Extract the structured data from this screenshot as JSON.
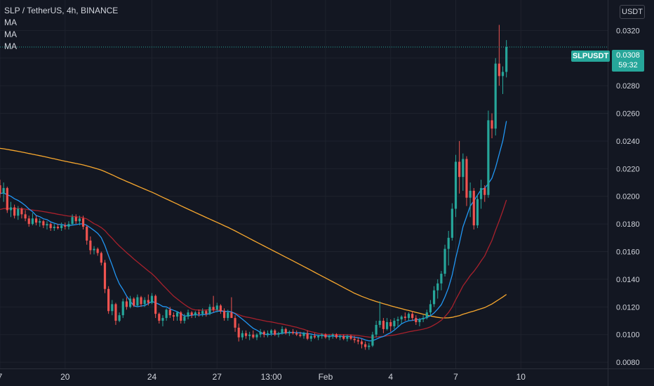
{
  "legend": {
    "title": "SLP / TetherUS, 4h, BINANCE",
    "ma_labels": [
      "MA",
      "MA",
      "MA"
    ]
  },
  "axis": {
    "unit": "USDT"
  },
  "last_price": {
    "symbol": "SLPUSDT",
    "value": "0.0308",
    "countdown": "59:32"
  },
  "colors": {
    "background": "#131722",
    "grid": "#1e222d",
    "up": "#26a69a",
    "down": "#ef5350",
    "ma_fast": "#2196f3",
    "ma_mid": "#a7212c",
    "ma_slow": "#f7a72e",
    "text": "#d1d4dc"
  },
  "chart_data": {
    "type": "candlestick",
    "y_ticks": [
      "0.0080",
      "0.0100",
      "0.0120",
      "0.0140",
      "0.0160",
      "0.0180",
      "0.0200",
      "0.0220",
      "0.0240",
      "0.0260",
      "0.0280",
      "0.0300",
      "0.0320"
    ],
    "ylim": [
      0.00755,
      0.0342
    ],
    "x_ticks": [
      {
        "label": "7",
        "i": 0
      },
      {
        "label": "20",
        "i": 18
      },
      {
        "label": "24",
        "i": 42
      },
      {
        "label": "27",
        "i": 60
      },
      {
        "label": "13:00",
        "i": 75
      },
      {
        "label": "Feb",
        "i": 90
      },
      {
        "label": "4",
        "i": 108
      },
      {
        "label": "7",
        "i": 126
      },
      {
        "label": "10",
        "i": 144
      }
    ],
    "x_index_range": [
      0,
      168
    ],
    "last_value": 0.0308,
    "candles_ohlc": [
      [
        0.0208,
        0.0212,
        0.0199,
        0.0202
      ],
      [
        0.0202,
        0.021,
        0.0196,
        0.0206
      ],
      [
        0.0206,
        0.0207,
        0.0188,
        0.019
      ],
      [
        0.019,
        0.0196,
        0.0185,
        0.0192
      ],
      [
        0.0192,
        0.0194,
        0.0184,
        0.0186
      ],
      [
        0.0186,
        0.0193,
        0.0183,
        0.0191
      ],
      [
        0.0191,
        0.0192,
        0.0184,
        0.0187
      ],
      [
        0.0187,
        0.019,
        0.0182,
        0.0184
      ],
      [
        0.0184,
        0.0186,
        0.0178,
        0.018
      ],
      [
        0.018,
        0.0188,
        0.0179,
        0.0184
      ],
      [
        0.0184,
        0.0186,
        0.0179,
        0.0181
      ],
      [
        0.0181,
        0.0184,
        0.0178,
        0.0182
      ],
      [
        0.0182,
        0.0183,
        0.0177,
        0.0179
      ],
      [
        0.0179,
        0.0182,
        0.0176,
        0.018
      ],
      [
        0.018,
        0.0181,
        0.0175,
        0.0177
      ],
      [
        0.0177,
        0.018,
        0.0175,
        0.0178
      ],
      [
        0.0178,
        0.018,
        0.0176,
        0.0177
      ],
      [
        0.0177,
        0.0181,
        0.0175,
        0.0179
      ],
      [
        0.0179,
        0.0181,
        0.0176,
        0.0178
      ],
      [
        0.0178,
        0.0182,
        0.0176,
        0.018
      ],
      [
        0.018,
        0.0187,
        0.0179,
        0.0185
      ],
      [
        0.0185,
        0.0187,
        0.018,
        0.0182
      ],
      [
        0.0182,
        0.0186,
        0.0179,
        0.0184
      ],
      [
        0.0184,
        0.0186,
        0.0176,
        0.0178
      ],
      [
        0.0178,
        0.0179,
        0.0165,
        0.0168
      ],
      [
        0.0168,
        0.0171,
        0.0158,
        0.0161
      ],
      [
        0.0161,
        0.0164,
        0.0158,
        0.0162
      ],
      [
        0.0162,
        0.0163,
        0.0157,
        0.0159
      ],
      [
        0.0159,
        0.016,
        0.015,
        0.0152
      ],
      [
        0.0152,
        0.0154,
        0.013,
        0.0133
      ],
      [
        0.0133,
        0.0135,
        0.0115,
        0.0117
      ],
      [
        0.0117,
        0.0125,
        0.0114,
        0.0122
      ],
      [
        0.0122,
        0.0123,
        0.0107,
        0.011
      ],
      [
        0.011,
        0.0116,
        0.0109,
        0.0114
      ],
      [
        0.0114,
        0.0126,
        0.0112,
        0.0124
      ],
      [
        0.0124,
        0.0127,
        0.0118,
        0.012
      ],
      [
        0.012,
        0.0128,
        0.0119,
        0.0126
      ],
      [
        0.0126,
        0.0127,
        0.012,
        0.0121
      ],
      [
        0.0121,
        0.0129,
        0.012,
        0.0127
      ],
      [
        0.0127,
        0.0128,
        0.012,
        0.0122
      ],
      [
        0.0122,
        0.0127,
        0.012,
        0.0125
      ],
      [
        0.0125,
        0.0129,
        0.0121,
        0.0123
      ],
      [
        0.0123,
        0.013,
        0.0122,
        0.0128
      ],
      [
        0.0128,
        0.0129,
        0.0112,
        0.0115
      ],
      [
        0.0115,
        0.0116,
        0.0108,
        0.011
      ],
      [
        0.011,
        0.0114,
        0.0106,
        0.0112
      ],
      [
        0.0112,
        0.0119,
        0.011,
        0.0118
      ],
      [
        0.0118,
        0.012,
        0.0112,
        0.0114
      ],
      [
        0.0114,
        0.0116,
        0.011,
        0.0113
      ],
      [
        0.0113,
        0.0117,
        0.011,
        0.0116
      ],
      [
        0.0116,
        0.0117,
        0.0108,
        0.011
      ],
      [
        0.011,
        0.0115,
        0.0108,
        0.0113
      ],
      [
        0.0113,
        0.0118,
        0.0111,
        0.0116
      ],
      [
        0.0116,
        0.0117,
        0.0112,
        0.0114
      ],
      [
        0.0114,
        0.0117,
        0.0112,
        0.0116
      ],
      [
        0.0116,
        0.0118,
        0.0113,
        0.0115
      ],
      [
        0.0115,
        0.0119,
        0.0113,
        0.0117
      ],
      [
        0.0117,
        0.0118,
        0.0113,
        0.0115
      ],
      [
        0.0115,
        0.0122,
        0.0114,
        0.012
      ],
      [
        0.012,
        0.0128,
        0.0116,
        0.0118
      ],
      [
        0.0118,
        0.0123,
        0.0116,
        0.0121
      ],
      [
        0.0121,
        0.0122,
        0.0115,
        0.0117
      ],
      [
        0.0117,
        0.0119,
        0.011,
        0.0112
      ],
      [
        0.0112,
        0.0118,
        0.011,
        0.0116
      ],
      [
        0.0116,
        0.0127,
        0.0114,
        0.0112
      ],
      [
        0.0112,
        0.0114,
        0.0102,
        0.0105
      ],
      [
        0.0105,
        0.0108,
        0.0095,
        0.0098
      ],
      [
        0.0098,
        0.0103,
        0.0096,
        0.0101
      ],
      [
        0.0101,
        0.0103,
        0.0097,
        0.0099
      ],
      [
        0.0099,
        0.0102,
        0.0096,
        0.01
      ],
      [
        0.01,
        0.0103,
        0.0097,
        0.0098
      ],
      [
        0.0098,
        0.0101,
        0.0096,
        0.01
      ],
      [
        0.01,
        0.0104,
        0.0098,
        0.0102
      ],
      [
        0.0102,
        0.0103,
        0.0098,
        0.01
      ],
      [
        0.01,
        0.0103,
        0.0098,
        0.0101
      ],
      [
        0.0101,
        0.0104,
        0.0099,
        0.0103
      ],
      [
        0.0103,
        0.0104,
        0.0099,
        0.01
      ],
      [
        0.01,
        0.0102,
        0.0098,
        0.0101
      ],
      [
        0.0101,
        0.0106,
        0.01,
        0.0104
      ],
      [
        0.0104,
        0.0105,
        0.01,
        0.0101
      ],
      [
        0.0101,
        0.0103,
        0.0099,
        0.0102
      ],
      [
        0.0102,
        0.0104,
        0.01,
        0.0101
      ],
      [
        0.0101,
        0.0103,
        0.0099,
        0.01
      ],
      [
        0.01,
        0.0102,
        0.0098,
        0.0099
      ],
      [
        0.0099,
        0.0102,
        0.0097,
        0.0101
      ],
      [
        0.0101,
        0.0103,
        0.0096,
        0.0097
      ],
      [
        0.0097,
        0.01,
        0.0095,
        0.0099
      ],
      [
        0.0099,
        0.0101,
        0.0097,
        0.0098
      ],
      [
        0.0098,
        0.01,
        0.0096,
        0.0099
      ],
      [
        0.0099,
        0.0101,
        0.0097,
        0.01
      ],
      [
        0.01,
        0.0101,
        0.0097,
        0.0098
      ],
      [
        0.0098,
        0.01,
        0.0096,
        0.0099
      ],
      [
        0.0099,
        0.0101,
        0.0097,
        0.01
      ],
      [
        0.01,
        0.0101,
        0.0097,
        0.0098
      ],
      [
        0.0098,
        0.01,
        0.0096,
        0.0099
      ],
      [
        0.0099,
        0.01,
        0.0096,
        0.0097
      ],
      [
        0.0097,
        0.01,
        0.0095,
        0.0099
      ],
      [
        0.0099,
        0.01,
        0.0096,
        0.0097
      ],
      [
        0.0097,
        0.0099,
        0.0094,
        0.0096
      ],
      [
        0.0096,
        0.0098,
        0.0093,
        0.0095
      ],
      [
        0.0095,
        0.0097,
        0.009,
        0.0093
      ],
      [
        0.0093,
        0.0095,
        0.0089,
        0.0091
      ],
      [
        0.0091,
        0.0094,
        0.0089,
        0.0092
      ],
      [
        0.0092,
        0.0102,
        0.0091,
        0.01
      ],
      [
        0.01,
        0.011,
        0.0098,
        0.0107
      ],
      [
        0.0107,
        0.0124,
        0.0105,
        0.011
      ],
      [
        0.011,
        0.0112,
        0.0101,
        0.0104
      ],
      [
        0.0104,
        0.0112,
        0.0103,
        0.0109
      ],
      [
        0.0109,
        0.0111,
        0.0102,
        0.0106
      ],
      [
        0.0106,
        0.0112,
        0.0104,
        0.011
      ],
      [
        0.011,
        0.0113,
        0.0106,
        0.0111
      ],
      [
        0.0111,
        0.0114,
        0.0108,
        0.0113
      ],
      [
        0.0113,
        0.0116,
        0.011,
        0.0112
      ],
      [
        0.0112,
        0.0116,
        0.011,
        0.0115
      ],
      [
        0.0115,
        0.0117,
        0.011,
        0.0112
      ],
      [
        0.0112,
        0.0114,
        0.0107,
        0.0109
      ],
      [
        0.0109,
        0.0112,
        0.0106,
        0.0111
      ],
      [
        0.0111,
        0.0114,
        0.0109,
        0.0112
      ],
      [
        0.0112,
        0.0118,
        0.0111,
        0.0116
      ],
      [
        0.0116,
        0.0125,
        0.0114,
        0.0122
      ],
      [
        0.0122,
        0.0135,
        0.012,
        0.0132
      ],
      [
        0.0132,
        0.014,
        0.0126,
        0.0137
      ],
      [
        0.0137,
        0.0146,
        0.0132,
        0.0144
      ],
      [
        0.0144,
        0.0165,
        0.0142,
        0.0162
      ],
      [
        0.0162,
        0.0175,
        0.015,
        0.017
      ],
      [
        0.017,
        0.0195,
        0.0168,
        0.0191
      ],
      [
        0.0191,
        0.023,
        0.0185,
        0.0225
      ],
      [
        0.0225,
        0.024,
        0.0202,
        0.0214
      ],
      [
        0.0214,
        0.0231,
        0.0204,
        0.0227
      ],
      [
        0.0227,
        0.0229,
        0.0193,
        0.0199
      ],
      [
        0.0199,
        0.021,
        0.0185,
        0.0204
      ],
      [
        0.0204,
        0.0206,
        0.0176,
        0.0179
      ],
      [
        0.0179,
        0.0201,
        0.0177,
        0.0198
      ],
      [
        0.0198,
        0.0212,
        0.0191,
        0.0206
      ],
      [
        0.0206,
        0.0208,
        0.0196,
        0.0201
      ],
      [
        0.0201,
        0.0262,
        0.0199,
        0.0255
      ],
      [
        0.0255,
        0.026,
        0.0242,
        0.0249
      ],
      [
        0.0249,
        0.03,
        0.0244,
        0.0296
      ],
      [
        0.0296,
        0.0324,
        0.028,
        0.0287
      ],
      [
        0.0287,
        0.0294,
        0.0274,
        0.029
      ],
      [
        0.029,
        0.0313,
        0.0286,
        0.0308
      ]
    ]
  }
}
